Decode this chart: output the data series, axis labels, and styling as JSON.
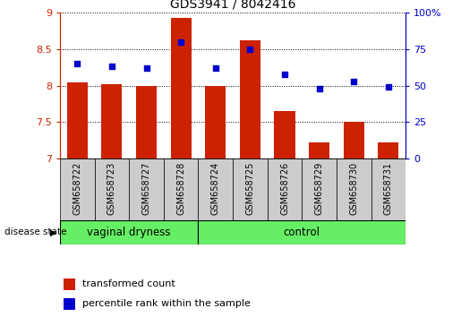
{
  "title": "GDS3941 / 8042416",
  "samples": [
    "GSM658722",
    "GSM658723",
    "GSM658727",
    "GSM658728",
    "GSM658724",
    "GSM658725",
    "GSM658726",
    "GSM658729",
    "GSM658730",
    "GSM658731"
  ],
  "red_values": [
    8.05,
    8.02,
    8.0,
    8.93,
    7.99,
    8.62,
    7.65,
    7.22,
    7.5,
    7.22
  ],
  "blue_values": [
    65,
    63,
    62,
    80,
    62,
    75,
    58,
    48,
    53,
    49
  ],
  "groups": [
    {
      "label": "vaginal dryness",
      "start": 0,
      "end": 4
    },
    {
      "label": "control",
      "start": 4,
      "end": 10
    }
  ],
  "disease_state_label": "disease state",
  "ylim_left": [
    7.0,
    9.0
  ],
  "ylim_right": [
    0,
    100
  ],
  "yticks_left": [
    7.0,
    7.5,
    8.0,
    8.5,
    9.0
  ],
  "yticks_right": [
    0,
    25,
    50,
    75,
    100
  ],
  "ytick_labels_left": [
    "7",
    "7.5",
    "8",
    "8.5",
    "9"
  ],
  "ytick_labels_right": [
    "0",
    "25",
    "50",
    "75",
    "100%"
  ],
  "bar_color": "#cc2200",
  "dot_color": "#0000cc",
  "group_color": "#66ee66",
  "group_border_color": "#000000",
  "label_area_color": "#cccccc",
  "grid_color": "#000000",
  "legend_red_label": "transformed count",
  "legend_blue_label": "percentile rank within the sample",
  "bar_width": 0.6
}
